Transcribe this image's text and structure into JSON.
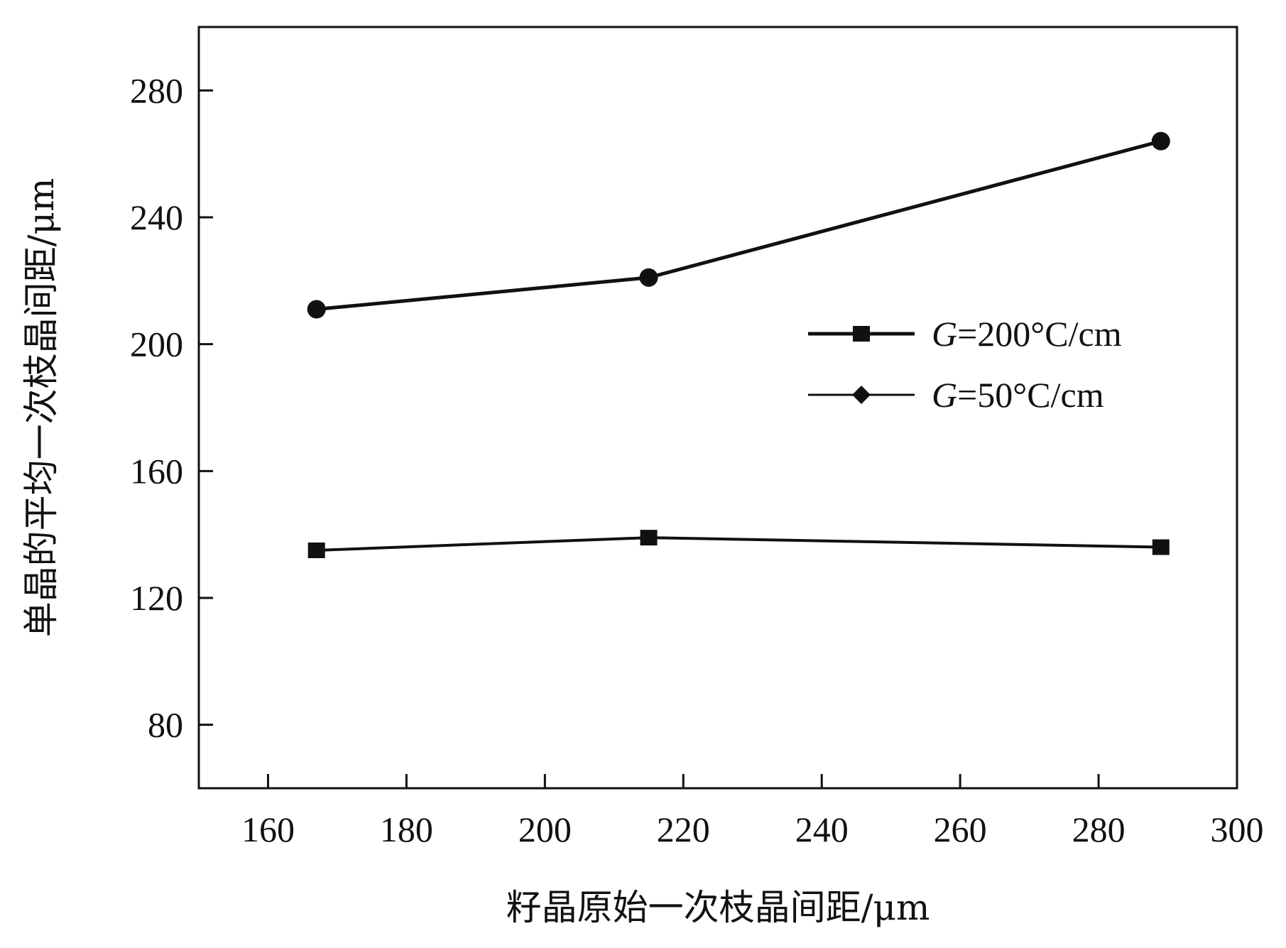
{
  "chart_data": {
    "type": "line",
    "title": "",
    "xlabel": "籽晶原始一次枝晶间距/μm",
    "ylabel": "单晶的平均一次枝晶间距/μm",
    "xlim": [
      150,
      300
    ],
    "ylim": [
      60,
      300
    ],
    "xticks": [
      160,
      180,
      200,
      220,
      240,
      260,
      280,
      300
    ],
    "yticks": [
      80,
      120,
      160,
      200,
      240,
      280
    ],
    "grid": false,
    "legend_position": "middle-right",
    "series": [
      {
        "name": "G=200°C/cm",
        "label_var": "G",
        "label_rest": "=200°C/cm",
        "marker": "square",
        "x": [
          167,
          215,
          289
        ],
        "y": [
          135,
          139,
          136
        ]
      },
      {
        "name": "G=50°C/cm",
        "label_var": "G",
        "label_rest": "=50°C/cm",
        "marker": "circle",
        "x": [
          167,
          215,
          289
        ],
        "y": [
          211,
          221,
          264
        ]
      }
    ]
  }
}
